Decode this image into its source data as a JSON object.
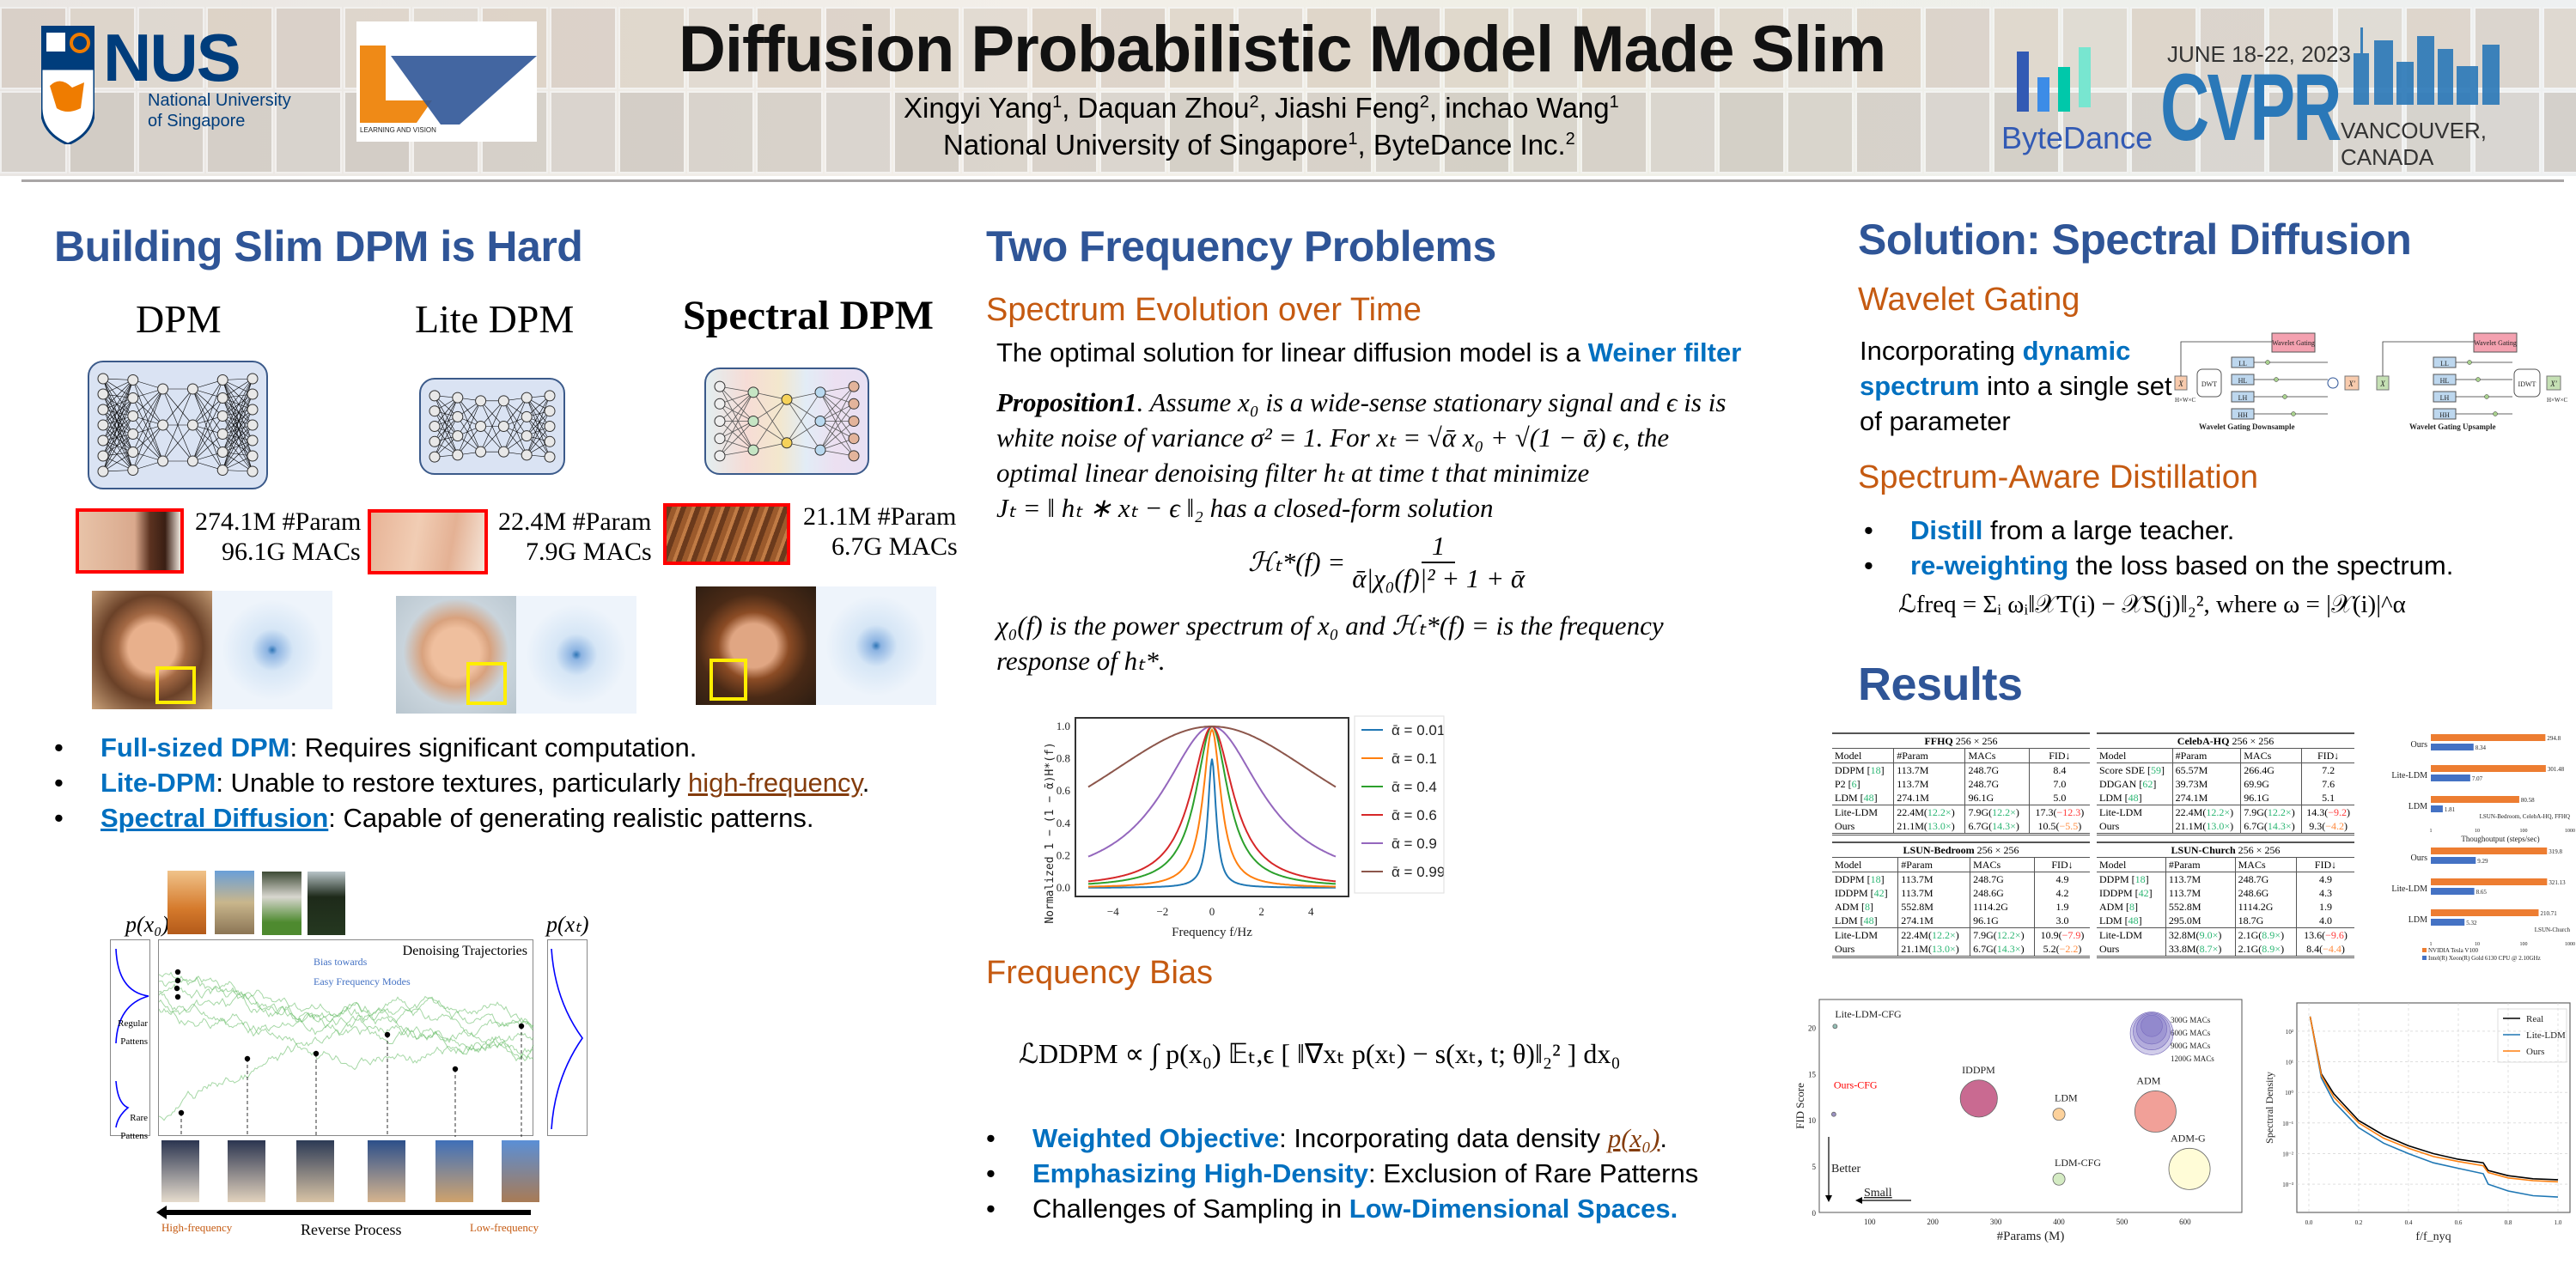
{
  "header": {
    "nus_logo_word": "NUS",
    "nus_logo_sub1": "National University",
    "nus_logo_sub2": "of Singapore",
    "lv_logo_label": "LEARNING AND VISION",
    "title": "Diffusion Probabilistic Model Made Slim",
    "authors": [
      {
        "name": "Xingyi Yang",
        "aff": "1"
      },
      {
        "name": "Daquan Zhou",
        "aff": "2"
      },
      {
        "name": "Jiashi Feng",
        "aff": "2"
      },
      {
        "name": "inchao Wang",
        "aff": "1"
      }
    ],
    "affiliations": [
      {
        "name": "National University of Singapore",
        "aff": "1"
      },
      {
        "name": "ByteDance Inc.",
        "aff": "2"
      }
    ],
    "bytedance_label": "ByteDance",
    "cvpr_date": "JUNE 18-22, 2023",
    "cvpr_word": "CVPR",
    "cvpr_location": "VANCOUVER, CANADA"
  },
  "col1": {
    "heading": "Building Slim DPM is Hard",
    "models": [
      {
        "name": "DPM",
        "params": "274.1M #Param",
        "macs": "96.1G MACs"
      },
      {
        "name": "Lite DPM",
        "params": "22.4M #Param",
        "macs": "7.9G MACs"
      },
      {
        "name": "Spectral DPM",
        "params": "21.1M #Param",
        "macs": "6.7G MACs"
      }
    ],
    "bullets": [
      {
        "strong": "Full-sized DPM",
        "rest": ": Requires significant computation."
      },
      {
        "strong": "Lite-DPM",
        "rest": ": Unable to restore textures, particularly ",
        "link": "high-frequency",
        "tail": "."
      },
      {
        "strong": "Spectral Diffusion",
        "rest": ": Capable of generating realistic patterns."
      }
    ],
    "trajectory_figure": {
      "px0_label": "p(x₀)",
      "pxT_label": "p(xₜ)",
      "regular_label_1": "Regular",
      "regular_label_2": "Pattens",
      "rare_label_1": "Rare",
      "rare_label_2": "Pattens",
      "title": "Denoising Trajectories",
      "bias_1": "Bias towards",
      "bias_2": "Easy Frequency Modes",
      "reverse_process": "Reverse Process",
      "high_freq": "High-frequency",
      "low_freq": "Low-frequency"
    }
  },
  "col2": {
    "heading": "Two Frequency Problems",
    "sub1": "Spectrum Evolution over Time",
    "intro_plain": "The optimal solution for linear diffusion model is a ",
    "intro_strong": "Weiner filter",
    "prop_label": "Proposition1",
    "prop_line1": ". Assume x₀ is a wide-sense stationary signal and ϵ is is",
    "prop_line2": "white noise of variance σ² = 1. For xₜ = √ᾱ x₀ + √(1 − ᾱ) ϵ, the",
    "prop_line3": "optimal linear denoising filter hₜ at time t that minimize",
    "prop_line4": "Jₜ = ‖ hₜ ∗ xₜ − ϵ ‖₂ has a closed-form solution",
    "formula_lhs": "ℋₜ*(f) =",
    "formula_num": "1",
    "formula_den": "ᾱ|χ₀(f)|² + 1 + ᾱ",
    "after_line1": "χ₀(f) is the power spectrum of x₀ and ℋₜ*(f) = is the frequency",
    "after_line2": "response of hₜ*.",
    "sub2": "Frequency Bias",
    "loss_formula": "ℒDDPM ∝ ∫ p(x₀) 𝔼ₜ,ϵ [ ‖∇xₜ p(xₜ) − s(xₜ, t; θ)‖₂² ] dx₀",
    "bullets": [
      {
        "strong": "Weighted Objective",
        "rest": ": Incorporating data density ",
        "link": "p(x₀)",
        "tail": "."
      },
      {
        "strong": "Emphasizing High-Density",
        "rest": ": Exclusion of Rare Patterns"
      },
      {
        "plain": "Challenges of Sampling in ",
        "strong_tail": "Low-Dimensional Spaces."
      }
    ]
  },
  "col3": {
    "heading": "Solution: Spectral Diffusion",
    "sub1": "Wavelet Gating",
    "wg_text_1": "Incorporating ",
    "wg_strong": "dynamic spectrum",
    "wg_text_2": " into a single set of parameter",
    "wg_diagram": {
      "gating": "Wavelet Gating",
      "dwt": "DWT",
      "idwt": "IDWT",
      "bands": [
        "LL",
        "HL",
        "LH",
        "HH"
      ],
      "x_in": "X",
      "x_out": "X′",
      "dim_full": "H×W×C",
      "dim_half": "H/2×W/2×C",
      "caption_down": "Wavelet Gating Downsample",
      "caption_up": "Wavelet Gating Upsample"
    },
    "sub2": "Spectrum-Aware Distillation",
    "bullets": [
      {
        "strong": "Distill",
        "rest": " from a large teacher."
      },
      {
        "strong": "re-weighting",
        "rest": " the loss based on the spectrum."
      }
    ],
    "freq_loss": "ℒfreq = Σᵢ ωᵢ‖𝒳T(i) − 𝒳S(j)‖₂², where ω = |𝒳(i)|^α",
    "results_heading": "Results",
    "tables": [
      {
        "dataset": "FFHQ",
        "res": "256 × 256",
        "columns": [
          "Model",
          "#Param",
          "MACs",
          "FID↓"
        ],
        "rows": [
          [
            "DDPM [18]",
            "113.7M",
            "248.7G",
            "8.4"
          ],
          [
            "P2 [6]",
            "113.7M",
            "248.7G",
            "7.0"
          ],
          [
            "LDM [48]",
            "274.1M",
            "96.1G",
            "5.0"
          ]
        ],
        "ours_rows": [
          {
            "model": "Lite-LDM",
            "param": "22.4M",
            "param_x": "12.2×",
            "macs": "7.9G",
            "macs_x": "12.2×",
            "fid": "17.3",
            "fid_d": "−12.3",
            "fid_cls": "r"
          },
          {
            "model": "Ours",
            "param": "21.1M",
            "param_x": "13.0×",
            "macs": "6.7G",
            "macs_x": "14.3×",
            "fid": "10.5",
            "fid_d": "−5.5",
            "fid_cls": "o"
          }
        ]
      },
      {
        "dataset": "CelebA-HQ",
        "res": "256 × 256",
        "columns": [
          "Model",
          "#Param",
          "MACs",
          "FID↓"
        ],
        "rows": [
          [
            "Score SDE [59]",
            "65.57M",
            "266.4G",
            "7.2"
          ],
          [
            "DDGAN [62]",
            "39.73M",
            "69.9G",
            "7.6"
          ],
          [
            "LDM [48]",
            "274.1M",
            "96.1G",
            "5.1"
          ]
        ],
        "ours_rows": [
          {
            "model": "Lite-LDM",
            "param": "22.4M",
            "param_x": "12.2×",
            "macs": "7.9G",
            "macs_x": "12.2×",
            "fid": "14.3",
            "fid_d": "−9.2",
            "fid_cls": "r"
          },
          {
            "model": "Ours",
            "param": "21.1M",
            "param_x": "13.0×",
            "macs": "6.7G",
            "macs_x": "14.3×",
            "fid": "9.3",
            "fid_d": "−4.2",
            "fid_cls": "o"
          }
        ]
      },
      {
        "dataset": "LSUN-Bedroom",
        "res": "256 × 256",
        "columns": [
          "Model",
          "#Param",
          "MACs",
          "FID↓"
        ],
        "rows": [
          [
            "DDPM [18]",
            "113.7M",
            "248.7G",
            "4.9"
          ],
          [
            "IDDPM [42]",
            "113.7M",
            "248.6G",
            "4.2"
          ],
          [
            "ADM [8]",
            "552.8M",
            "1114.2G",
            "1.9"
          ],
          [
            "LDM [48]",
            "274.1M",
            "96.1G",
            "3.0"
          ]
        ],
        "ours_rows": [
          {
            "model": "Lite-LDM",
            "param": "22.4M",
            "param_x": "12.2×",
            "macs": "7.9G",
            "macs_x": "12.2×",
            "fid": "10.9",
            "fid_d": "−7.9",
            "fid_cls": "r"
          },
          {
            "model": "Ours",
            "param": "21.1M",
            "param_x": "13.0×",
            "macs": "6.7G",
            "macs_x": "14.3×",
            "fid": "5.2",
            "fid_d": "−2.2",
            "fid_cls": "o"
          }
        ]
      },
      {
        "dataset": "LSUN-Church",
        "res": "256 × 256",
        "columns": [
          "Model",
          "#Param",
          "MACs",
          "FID↓"
        ],
        "rows": [
          [
            "DDPM [18]",
            "113.7M",
            "248.7G",
            "4.9"
          ],
          [
            "IDDPM [42]",
            "113.7M",
            "248.6G",
            "4.3"
          ],
          [
            "ADM [8]",
            "552.8M",
            "1114.2G",
            "1.9"
          ],
          [
            "LDM [48]",
            "295.0M",
            "18.7G",
            "4.0"
          ]
        ],
        "ours_rows": [
          {
            "model": "Lite-LDM",
            "param": "32.8M",
            "param_x": "9.0×",
            "macs": "2.1G",
            "macs_x": "8.9×",
            "fid": "13.6",
            "fid_d": "−9.6",
            "fid_cls": "r"
          },
          {
            "model": "Ours",
            "param": "33.8M",
            "param_x": "8.7×",
            "macs": "2.1G",
            "macs_x": "8.9×",
            "fid": "8.4",
            "fid_d": "−4.4",
            "fid_cls": "o"
          }
        ]
      }
    ]
  },
  "chart_data": [
    {
      "id": "weiner-response",
      "type": "line",
      "title": "",
      "xlabel": "Frequency f/Hz",
      "ylabel": "Normalized 1 − (1 − ᾱ)H*(f)",
      "xlim": [
        -5,
        5
      ],
      "ylim": [
        0,
        1
      ],
      "xticks": [
        "−4",
        "−2",
        "0",
        "2",
        "4"
      ],
      "yticks": [
        "0.0",
        "0.2",
        "0.4",
        "0.6",
        "0.8",
        "1.0"
      ],
      "legend_position": "right-outside",
      "series": [
        {
          "name": "ᾱ = 0.01",
          "color": "#1f77b4",
          "alpha_bar": 0.01,
          "peak": 0.8,
          "half_width": 0.25
        },
        {
          "name": "ᾱ = 0.1",
          "color": "#ff7f0e",
          "alpha_bar": 0.1,
          "peak": 0.98,
          "half_width": 0.55
        },
        {
          "name": "ᾱ = 0.4",
          "color": "#2ca02c",
          "alpha_bar": 0.4,
          "peak": 1.0,
          "half_width": 1.0
        },
        {
          "name": "ᾱ = 0.6",
          "color": "#d62728",
          "alpha_bar": 0.6,
          "peak": 1.0,
          "half_width": 1.3
        },
        {
          "name": "ᾱ = 0.9",
          "color": "#9467bd",
          "alpha_bar": 0.9,
          "peak": 1.0,
          "half_width": 3.1
        },
        {
          "name": "ᾱ = 0.99",
          "color": "#8c564b",
          "alpha_bar": 0.99,
          "peak": 1.0,
          "half_width": 10.0
        }
      ]
    },
    {
      "id": "fid-vs-params",
      "type": "scatter",
      "xlabel": "#Params (M)",
      "ylabel": "FID Score",
      "xlim": [
        20,
        690
      ],
      "ylim": [
        0,
        23
      ],
      "xticks": [
        "100",
        "200",
        "300",
        "400",
        "500",
        "600"
      ],
      "yticks": [
        "0",
        "5",
        "10",
        "15",
        "20"
      ],
      "points": [
        {
          "label": "Lite-LDM-CFG",
          "x": 45,
          "y": 20.1,
          "macs": 2,
          "color": "#7fb3a8"
        },
        {
          "label": "Ours-CFG",
          "x": 43,
          "y": 10.6,
          "macs": 2,
          "color": "#8a7fb8",
          "label_color": "#ff0000"
        },
        {
          "label": "IDDPM",
          "x": 273,
          "y": 12.3,
          "macs": 900,
          "color": "#c0507e"
        },
        {
          "label": "LDM",
          "x": 400,
          "y": 10.6,
          "macs": 96,
          "color": "#fbc98a"
        },
        {
          "label": "ADM",
          "x": 553,
          "y": 10.9,
          "macs": 1114,
          "color": "#ee8f86"
        },
        {
          "label": "LDM-CFG",
          "x": 400,
          "y": 3.6,
          "macs": 96,
          "color": "#cde8b8"
        },
        {
          "label": "ADM-G",
          "x": 607,
          "y": 4.7,
          "macs": 1114,
          "color": "#fffcd0"
        }
      ],
      "size_legend": [
        "300G MACs",
        "600G MACs",
        "900G MACs",
        "1200G MACs"
      ],
      "annotations": [
        "Better",
        "Small"
      ]
    },
    {
      "id": "throughput",
      "type": "bar",
      "orientation": "horizontal",
      "xscale": "log",
      "xlabel": "Thoughoutput (steps/sec)",
      "xticks": [
        "1",
        "10",
        "100",
        "1000"
      ],
      "legend": [
        "NVIDIA Tesla V100",
        "Intel(R) Xeon(R) Gold 6130 CPU @ 2.10GHz"
      ],
      "colors": [
        "#ed7d31",
        "#4472c4"
      ],
      "groups": [
        {
          "subtitle": "LSUN-Bedroom, CelebA-HQ, FFHQ",
          "categories": [
            "Ours",
            "Lite-LDM",
            "LDM"
          ],
          "gpu": [
            294.8,
            301.48,
            80.58
          ],
          "cpu": [
            8.34,
            7.07,
            1.81
          ]
        },
        {
          "subtitle": "LSUN-Church",
          "categories": [
            "Ours",
            "Lite-LDM",
            "LDM"
          ],
          "gpu": [
            319.8,
            321.13,
            210.71
          ],
          "cpu": [
            9.29,
            8.65,
            5.32
          ]
        }
      ]
    },
    {
      "id": "spectral-density",
      "type": "line",
      "yscale": "log",
      "xlabel": "f/f_nyq",
      "ylabel": "Spectrral Density",
      "xlim": [
        0,
        1
      ],
      "ylim": [
        0.0002,
        500
      ],
      "xticks": [
        "0.0",
        "0.2",
        "0.4",
        "0.6",
        "0.8",
        "1.0"
      ],
      "yticks": [
        "10⁻³",
        "10⁻²",
        "10⁻¹",
        "10⁰",
        "10¹",
        "10²"
      ],
      "legend_position": "top-right",
      "series": [
        {
          "name": "Real",
          "color": "#000000",
          "x": [
            0.005,
            0.05,
            0.1,
            0.2,
            0.3,
            0.4,
            0.5,
            0.6,
            0.7,
            0.72,
            0.8,
            0.9,
            1.0
          ],
          "y": [
            300,
            4,
            0.9,
            0.12,
            0.04,
            0.018,
            0.01,
            0.0065,
            0.005,
            0.0028,
            0.0019,
            0.0015,
            0.0014
          ]
        },
        {
          "name": "Lite-LDM",
          "color": "#1f77b4",
          "x": [
            0.005,
            0.05,
            0.1,
            0.2,
            0.3,
            0.4,
            0.5,
            0.6,
            0.7,
            0.72,
            0.8,
            0.9,
            1.0
          ],
          "y": [
            300,
            3,
            0.5,
            0.07,
            0.022,
            0.01,
            0.005,
            0.0033,
            0.0022,
            0.001,
            0.0006,
            0.00042,
            0.00038
          ]
        },
        {
          "name": "Ours",
          "color": "#ff7f0e",
          "x": [
            0.005,
            0.05,
            0.1,
            0.2,
            0.3,
            0.4,
            0.5,
            0.6,
            0.7,
            0.72,
            0.8,
            0.9,
            1.0
          ],
          "y": [
            300,
            3.6,
            0.7,
            0.1,
            0.032,
            0.015,
            0.008,
            0.0055,
            0.004,
            0.0024,
            0.0016,
            0.0013,
            0.0012
          ]
        }
      ]
    }
  ]
}
